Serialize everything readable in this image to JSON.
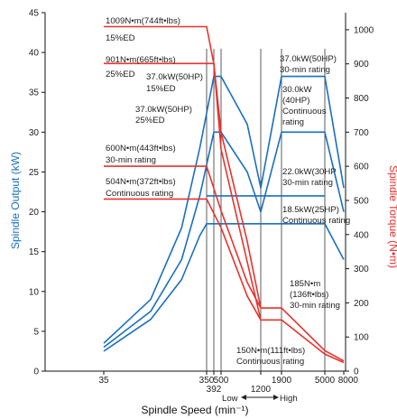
{
  "chart_data": {
    "type": "line",
    "xlabel": "Spindle Speed (min⁻¹)",
    "ylabel_left": "Spindle Output (kW)",
    "ylabel_right": "Spindle Torque (N•m)",
    "colors": {
      "output": "#1a6fc0",
      "torque": "#e8332d",
      "axis": "#111111"
    },
    "y_left": {
      "min": 0,
      "max": 45,
      "ticks": [
        "0",
        "5",
        "10",
        "15",
        "20",
        "25",
        "30",
        "35",
        "40",
        "45"
      ]
    },
    "y_right": {
      "min": 0,
      "max": 1050,
      "ticks": [
        "0",
        "100",
        "200",
        "300",
        "400",
        "500",
        "600",
        "700",
        "800",
        "900",
        "1000"
      ]
    },
    "x_ticks": [
      "35",
      "350",
      "392",
      "500",
      "1200",
      "1900",
      "5000",
      "8000"
    ],
    "x_range_labels": {
      "low": "Low",
      "high": "High"
    },
    "output_series": [
      {
        "points": [
          [
            35,
            3.5
          ],
          [
            100,
            9
          ],
          [
            200,
            18
          ],
          [
            300,
            28
          ],
          [
            392,
            37
          ],
          [
            500,
            37
          ],
          [
            900,
            31
          ],
          [
            1200,
            23
          ],
          [
            1900,
            37
          ],
          [
            5000,
            37
          ],
          [
            8000,
            23
          ]
        ]
      },
      {
        "points": [
          [
            35,
            3
          ],
          [
            100,
            7.5
          ],
          [
            200,
            14
          ],
          [
            300,
            22
          ],
          [
            392,
            30
          ],
          [
            500,
            30
          ],
          [
            900,
            25
          ],
          [
            1200,
            20
          ],
          [
            1900,
            30
          ],
          [
            5000,
            30
          ],
          [
            8000,
            20
          ]
        ]
      },
      {
        "points": [
          [
            35,
            2.5
          ],
          [
            100,
            6.5
          ],
          [
            200,
            11.5
          ],
          [
            300,
            17
          ],
          [
            350,
            18.5
          ],
          [
            1200,
            18.5
          ],
          [
            1900,
            18.5
          ],
          [
            5000,
            18.5
          ],
          [
            8000,
            14
          ]
        ]
      },
      {
        "points": [
          [
            350,
            22
          ],
          [
            1200,
            22
          ],
          [
            1900,
            22
          ],
          [
            5000,
            22
          ]
        ]
      }
    ],
    "torque_series": [
      {
        "points": [
          [
            35,
            1009
          ],
          [
            350,
            1009
          ],
          [
            392,
            900
          ],
          [
            500,
            700
          ],
          [
            900,
            380
          ],
          [
            1200,
            185
          ],
          [
            1900,
            185
          ],
          [
            5000,
            60
          ],
          [
            8000,
            30
          ]
        ]
      },
      {
        "points": [
          [
            35,
            901
          ],
          [
            392,
            901
          ],
          [
            500,
            650
          ],
          [
            900,
            320
          ],
          [
            1200,
            150
          ],
          [
            1900,
            150
          ],
          [
            5000,
            50
          ],
          [
            8000,
            25
          ]
        ]
      },
      {
        "points": [
          [
            35,
            600
          ],
          [
            350,
            600
          ],
          [
            500,
            470
          ],
          [
            900,
            260
          ],
          [
            1200,
            185
          ]
        ]
      },
      {
        "points": [
          [
            35,
            504
          ],
          [
            350,
            504
          ],
          [
            500,
            420
          ],
          [
            900,
            220
          ],
          [
            1200,
            150
          ]
        ]
      }
    ],
    "annotations": {
      "a1": "1009N•m(744ft•lbs)",
      "a2": "15%ED",
      "a3": "901N•m(665ft•lbs)",
      "a4": "25%ED",
      "a5": "37.0kW(50HP)",
      "a6": "15%ED",
      "a7": "37.0kW(50HP)",
      "a8": "25%ED",
      "a9": "600N•m(443ft•lbs)",
      "a10": "30-min rating",
      "a11": "504N•m(372ft•lbs)",
      "a12": "Continuous rating",
      "a13": "37.0kW(50HP)",
      "a14": "30-min rating",
      "a15": "30.0kW",
      "a16": "(40HP)",
      "a17": "Continuous",
      "a18": "rating",
      "a19": "22.0kW(30HP",
      "a20": "30-min rating",
      "a21": "18.5kW(25HP)",
      "a22": "Continuous rating",
      "a23": "185N•m",
      "a24": "(136ft•lbs)",
      "a25": "30-min rating",
      "a26": "150N•m(111ft•lbs)",
      "a27": "Continuous rating"
    }
  }
}
